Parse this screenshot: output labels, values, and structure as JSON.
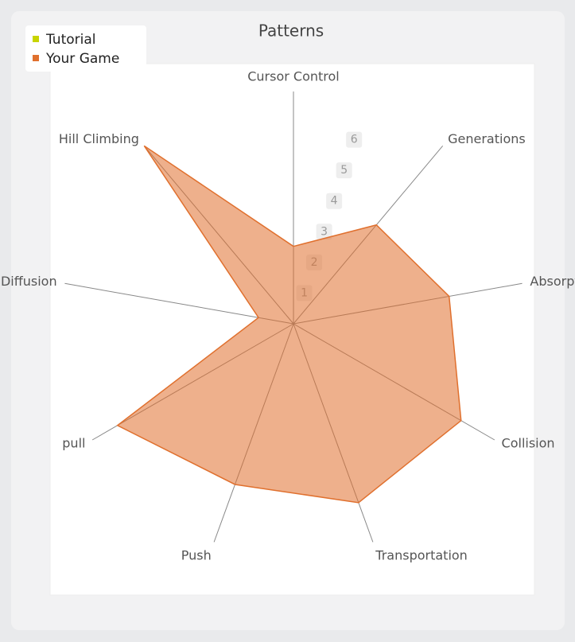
{
  "chart_data": {
    "type": "radar",
    "title": "Patterns",
    "categories": [
      "Cursor Control",
      "Generations",
      "Absorption",
      "Collision",
      "Transportation",
      "Push",
      "pull",
      "Diffusion",
      "Hill Climbing"
    ],
    "series": [
      {
        "name": "Tutorial",
        "color": "#c8d400",
        "values": [
          0,
          0,
          0,
          0,
          0,
          0,
          0,
          0,
          0
        ]
      },
      {
        "name": "Your Game",
        "color": "#e0702e",
        "values": [
          2.4,
          4.0,
          4.9,
          6.0,
          5.9,
          5.3,
          6.3,
          1.1,
          7.2
        ]
      }
    ],
    "rlim": [
      0,
      7.2
    ],
    "rticks": [
      1,
      2,
      3,
      4,
      5,
      6
    ],
    "legend": "upper left"
  }
}
